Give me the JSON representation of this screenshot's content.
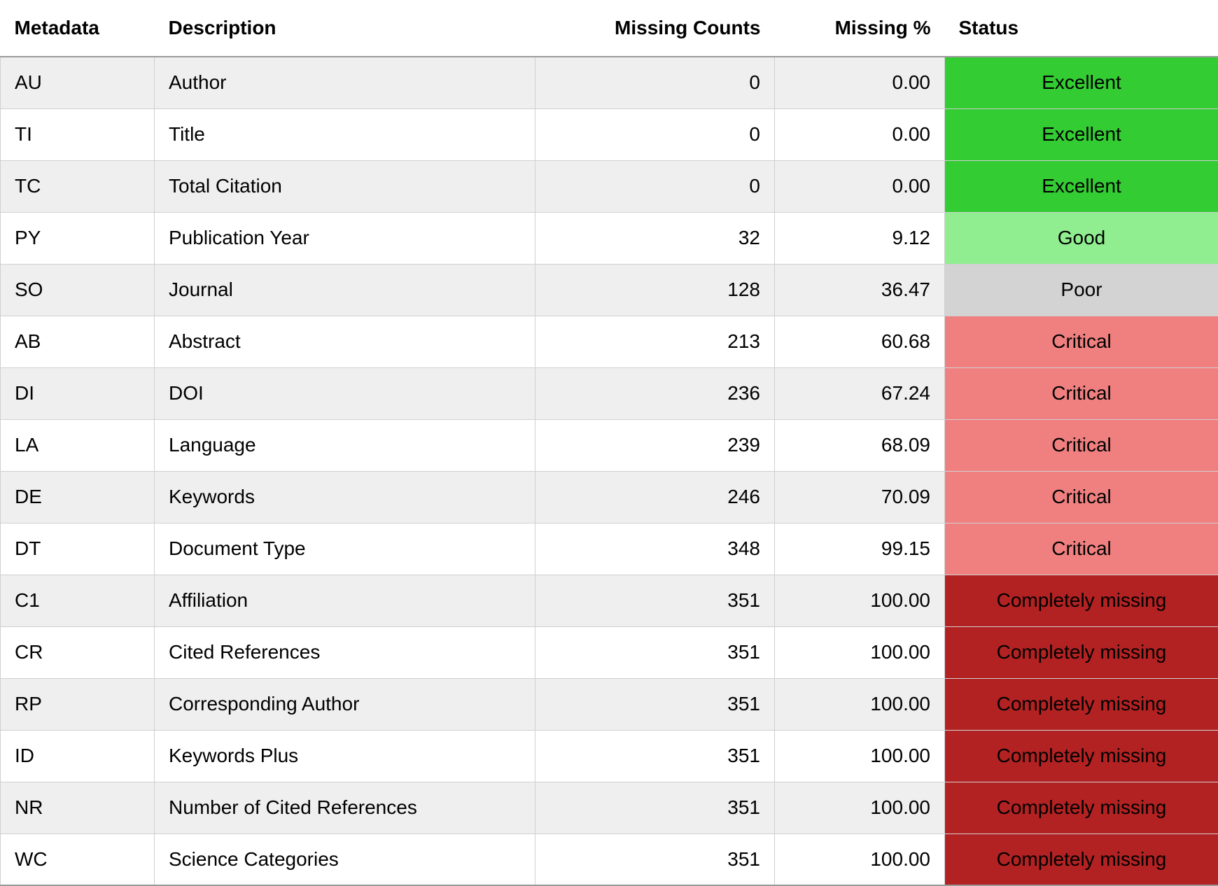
{
  "table": {
    "headers": {
      "metadata": "Metadata",
      "description": "Description",
      "missing_counts": "Missing Counts",
      "missing_pct": "Missing %",
      "status": "Status"
    },
    "status_colors": {
      "Excellent": "#33cc33",
      "Good": "#90ee90",
      "Poor": "#d3d3d3",
      "Critical": "#f08080",
      "Completely missing": "#b22222"
    },
    "rows": [
      {
        "metadata": "AU",
        "description": "Author",
        "missing_counts": "0",
        "missing_pct": "0.00",
        "status": "Excellent"
      },
      {
        "metadata": "TI",
        "description": "Title",
        "missing_counts": "0",
        "missing_pct": "0.00",
        "status": "Excellent"
      },
      {
        "metadata": "TC",
        "description": "Total Citation",
        "missing_counts": "0",
        "missing_pct": "0.00",
        "status": "Excellent"
      },
      {
        "metadata": "PY",
        "description": "Publication Year",
        "missing_counts": "32",
        "missing_pct": "9.12",
        "status": "Good"
      },
      {
        "metadata": "SO",
        "description": "Journal",
        "missing_counts": "128",
        "missing_pct": "36.47",
        "status": "Poor"
      },
      {
        "metadata": "AB",
        "description": "Abstract",
        "missing_counts": "213",
        "missing_pct": "60.68",
        "status": "Critical"
      },
      {
        "metadata": "DI",
        "description": "DOI",
        "missing_counts": "236",
        "missing_pct": "67.24",
        "status": "Critical"
      },
      {
        "metadata": "LA",
        "description": "Language",
        "missing_counts": "239",
        "missing_pct": "68.09",
        "status": "Critical"
      },
      {
        "metadata": "DE",
        "description": "Keywords",
        "missing_counts": "246",
        "missing_pct": "70.09",
        "status": "Critical"
      },
      {
        "metadata": "DT",
        "description": "Document Type",
        "missing_counts": "348",
        "missing_pct": "99.15",
        "status": "Critical"
      },
      {
        "metadata": "C1",
        "description": "Affiliation",
        "missing_counts": "351",
        "missing_pct": "100.00",
        "status": "Completely missing"
      },
      {
        "metadata": "CR",
        "description": "Cited References",
        "missing_counts": "351",
        "missing_pct": "100.00",
        "status": "Completely missing"
      },
      {
        "metadata": "RP",
        "description": "Corresponding Author",
        "missing_counts": "351",
        "missing_pct": "100.00",
        "status": "Completely missing"
      },
      {
        "metadata": "ID",
        "description": "Keywords Plus",
        "missing_counts": "351",
        "missing_pct": "100.00",
        "status": "Completely missing"
      },
      {
        "metadata": "NR",
        "description": "Number of Cited References",
        "missing_counts": "351",
        "missing_pct": "100.00",
        "status": "Completely missing"
      },
      {
        "metadata": "WC",
        "description": "Science Categories",
        "missing_counts": "351",
        "missing_pct": "100.00",
        "status": "Completely missing"
      }
    ]
  }
}
